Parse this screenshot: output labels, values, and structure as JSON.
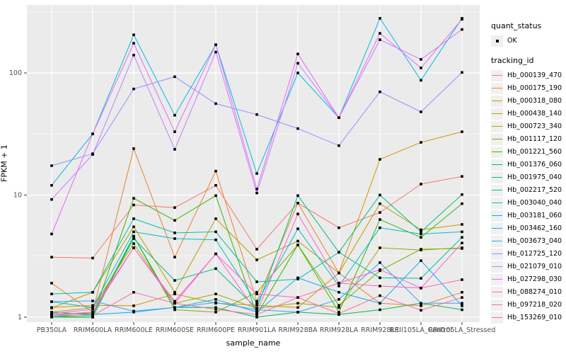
{
  "legend": {
    "quant_status_title": "quant_status",
    "quant_status_item": "OK",
    "tracking_id_title": "tracking_id"
  },
  "axes": {
    "y_tick_labels": [
      "100",
      "10",
      "1"
    ],
    "y_tick_values": [
      100,
      10,
      1
    ]
  },
  "chart_data": {
    "type": "line",
    "title": "",
    "xlabel": "sample_name",
    "ylabel": "FPKM + 1",
    "yscale": "log10",
    "ylim": [
      0.95,
      360
    ],
    "grid": "on",
    "legend_position": "right",
    "panel_background": "#EBEBEB",
    "gridline_color": "#FFFFFF",
    "point_color": "#000000",
    "point_shape": "small-black-square",
    "quant_status_value": "OK",
    "x": [
      "PB350LA",
      "RRIM600LA",
      "RRIM600LE",
      "RRIM600SE",
      "RRIM600PE",
      "RRIM901LA",
      "RRIM928BA",
      "RRIM928LA",
      "RRIM928LE",
      "RRII105LA_Control",
      "RRII105LA_Stressed"
    ],
    "series": [
      {
        "name": "Hb_000139_470",
        "color": "#F8766D",
        "values": [
          3.1,
          3.05,
          8.3,
          7.9,
          12.0,
          3.6,
          8.6,
          5.4,
          7.2,
          12.3,
          14.2
        ]
      },
      {
        "name": "Hb_000175_190",
        "color": "#EA8331",
        "values": [
          1.9,
          1.1,
          24.0,
          3.1,
          15.7,
          1.35,
          8.6,
          2.3,
          1.3,
          1.24,
          1.6
        ]
      },
      {
        "name": "Hb_000318_080",
        "color": "#D89000",
        "values": [
          1.2,
          1.25,
          1.24,
          1.55,
          1.3,
          1.25,
          1.2,
          2.3,
          19.6,
          27.0,
          33.0
        ]
      },
      {
        "name": "Hb_000438_140",
        "color": "#C09B00",
        "values": [
          1.19,
          1.6,
          5.5,
          1.6,
          6.4,
          2.95,
          4.2,
          2.3,
          8.5,
          5.2,
          5.75
        ]
      },
      {
        "name": "Hb_000723_340",
        "color": "#A3A500",
        "values": [
          1.1,
          1.2,
          4.0,
          1.3,
          1.55,
          1.18,
          1.3,
          1.2,
          3.7,
          3.55,
          3.7
        ]
      },
      {
        "name": "Hb_001117_120",
        "color": "#7CAE00",
        "values": [
          1.05,
          1.08,
          4.6,
          1.15,
          1.1,
          1.6,
          3.9,
          1.25,
          2.4,
          3.6,
          3.65
        ]
      },
      {
        "name": "Hb_001221_560",
        "color": "#39B600",
        "values": [
          1.02,
          1.0,
          9.4,
          6.2,
          9.9,
          1.05,
          3.9,
          1.1,
          6.3,
          4.5,
          8.5
        ]
      },
      {
        "name": "Hb_001376_060",
        "color": "#00BB4E",
        "values": [
          1.0,
          1.0,
          4.6,
          1.2,
          1.2,
          1.0,
          1.1,
          1.05,
          1.15,
          1.3,
          1.15
        ]
      },
      {
        "name": "Hb_001975_040",
        "color": "#00BF7D",
        "values": [
          1.1,
          1.05,
          4.4,
          2.0,
          2.5,
          1.18,
          9.9,
          3.4,
          10.0,
          5.0,
          10.1
        ]
      },
      {
        "name": "Hb_002217_520",
        "color": "#00C1A3",
        "values": [
          1.55,
          1.6,
          6.4,
          4.9,
          5.0,
          1.95,
          2.05,
          3.4,
          2.1,
          2.08,
          4.5
        ]
      },
      {
        "name": "Hb_003040_040",
        "color": "#00BFC4",
        "values": [
          1.34,
          1.2,
          5.0,
          4.4,
          4.3,
          1.3,
          5.3,
          1.8,
          5.4,
          4.8,
          5.0
        ]
      },
      {
        "name": "Hb_003181_060",
        "color": "#00BAE0",
        "values": [
          12.0,
          31.7,
          205.0,
          45.0,
          170.0,
          15.0,
          100.0,
          43.0,
          280.0,
          87.0,
          280.0
        ]
      },
      {
        "name": "Hb_003462_160",
        "color": "#00B0F6",
        "values": [
          1.02,
          1.05,
          1.1,
          1.2,
          1.4,
          1.1,
          2.1,
          1.6,
          1.3,
          2.9,
          1.24
        ]
      },
      {
        "name": "Hb_003673_040",
        "color": "#35A2FF",
        "values": [
          1.34,
          1.36,
          1.12,
          1.2,
          1.32,
          1.15,
          1.1,
          1.4,
          2.8,
          1.3,
          1.3
        ]
      },
      {
        "name": "Hb_012725_120",
        "color": "#9590FF",
        "values": [
          17.4,
          21.8,
          74.0,
          93.0,
          56.0,
          45.6,
          35.0,
          25.4,
          70.0,
          48.0,
          101.0
        ]
      },
      {
        "name": "Hb_021079_010",
        "color": "#C77CFF",
        "values": [
          9.2,
          21.5,
          140.0,
          23.7,
          148.0,
          10.4,
          120.0,
          43.0,
          187.0,
          129.0,
          227.0
        ]
      },
      {
        "name": "Hb_027298_030",
        "color": "#E76BF3",
        "values": [
          4.8,
          31.7,
          175.0,
          33.0,
          170.0,
          11.2,
          143.0,
          43.0,
          211.0,
          110.0,
          275.0
        ]
      },
      {
        "name": "Hb_088274_010",
        "color": "#FA62DB",
        "values": [
          1.05,
          1.1,
          3.7,
          1.3,
          3.3,
          1.1,
          7.0,
          1.9,
          2.45,
          1.73,
          4.05
        ]
      },
      {
        "name": "Hb_097218_020",
        "color": "#FF62BC",
        "values": [
          1.07,
          1.16,
          3.7,
          1.35,
          3.3,
          1.55,
          1.45,
          1.9,
          1.8,
          1.73,
          2.03
        ]
      },
      {
        "name": "Hb_153269_010",
        "color": "#FF6A98",
        "values": [
          1.05,
          1.03,
          1.6,
          1.3,
          1.16,
          1.05,
          1.45,
          1.07,
          1.5,
          1.14,
          1.45
        ]
      }
    ]
  }
}
